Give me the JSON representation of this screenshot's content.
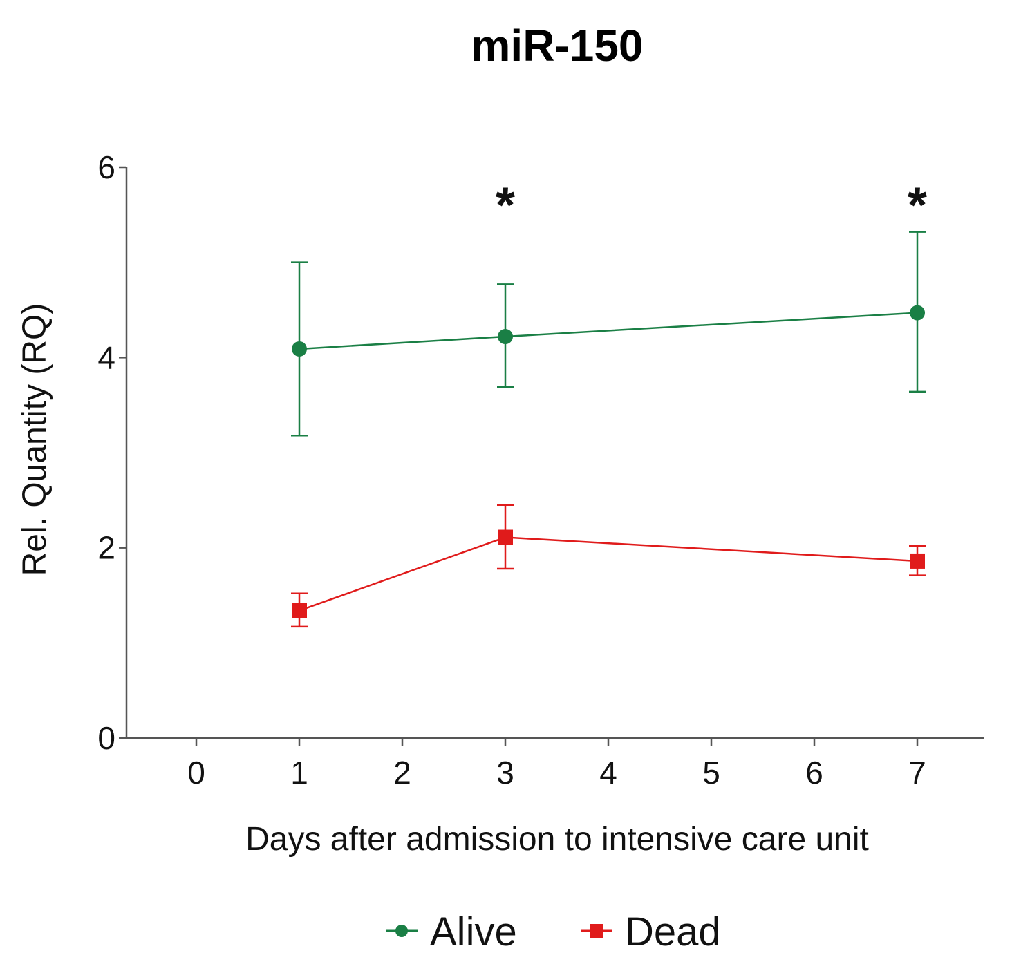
{
  "chart_data": {
    "type": "line",
    "title": "miR-150",
    "xlabel": "Days after admission to intensive care unit",
    "ylabel": "Rel. Quantity (RQ)",
    "xlim": [
      -1,
      8
    ],
    "ylim": [
      0,
      6
    ],
    "xticks": [
      0,
      1,
      2,
      3,
      4,
      5,
      6,
      7
    ],
    "xtick_labels": [
      "0",
      "1",
      "2",
      "3",
      "4",
      "5",
      "6",
      "7"
    ],
    "yticks": [
      0,
      2,
      4,
      6
    ],
    "ytick_labels": [
      "0",
      "2",
      "4",
      "6"
    ],
    "grid": false,
    "legend_position": "bottom-center",
    "series": [
      {
        "name": "Alive",
        "color": "#1a7f45",
        "marker": "circle",
        "x": [
          1,
          3,
          7
        ],
        "y": [
          4.09,
          4.22,
          4.47
        ],
        "err_low": [
          3.18,
          3.69,
          3.64
        ],
        "err_high": [
          5.0,
          4.77,
          5.32
        ]
      },
      {
        "name": "Dead",
        "color": "#e01b1b",
        "marker": "square",
        "x": [
          1,
          3,
          7
        ],
        "y": [
          1.34,
          2.11,
          1.86
        ],
        "err_low": [
          1.17,
          1.78,
          1.71
        ],
        "err_high": [
          1.52,
          2.45,
          2.02
        ]
      }
    ],
    "annotations": [
      {
        "text": "*",
        "x": 3,
        "y": 5.7
      },
      {
        "text": "*",
        "x": 7,
        "y": 5.7
      }
    ]
  }
}
